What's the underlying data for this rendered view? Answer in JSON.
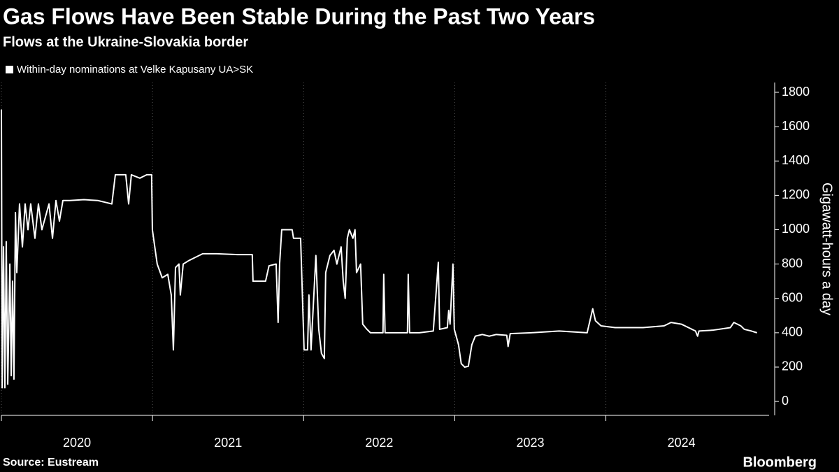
{
  "chart_data": {
    "type": "line",
    "title": "Gas Flows Have Been Stable During the Past Two Years",
    "subtitle": "Flows at the Ukraine-Slovakia border",
    "y_label": "Gigawatt-hours a day",
    "source": "Source: Eustream",
    "logo": "Bloomberg",
    "x": [
      2020.0,
      2020.005,
      2020.014,
      2020.023,
      2020.032,
      2020.042,
      2020.056,
      2020.065,
      2020.074,
      2020.083,
      2020.093,
      2020.102,
      2020.12,
      2020.139,
      2020.157,
      2020.176,
      2020.194,
      2020.222,
      2020.245,
      2020.268,
      2020.315,
      2020.338,
      2020.361,
      2020.384,
      2020.407,
      2020.453,
      2020.546,
      2020.638,
      2020.685,
      2020.731,
      2020.754,
      2020.823,
      2020.842,
      2020.86,
      2020.916,
      2020.962,
      2020.994,
      2020.999,
      2021.031,
      2021.064,
      2021.101,
      2021.124,
      2021.138,
      2021.152,
      2021.175,
      2021.184,
      2021.203,
      2021.24,
      2021.286,
      2021.332,
      2021.425,
      2021.563,
      2021.66,
      2021.665,
      2021.748,
      2021.771,
      2021.818,
      2021.831,
      2021.841,
      2021.855,
      2021.924,
      2021.933,
      2021.98,
      2022.003,
      2022.026,
      2022.035,
      2022.049,
      2022.081,
      2022.1,
      2022.118,
      2022.137,
      2022.146,
      2022.174,
      2022.201,
      2022.22,
      2022.248,
      2022.262,
      2022.275,
      2022.289,
      2022.303,
      2022.326,
      2022.34,
      2022.35,
      2022.377,
      2022.391,
      2022.419,
      2022.442,
      2022.525,
      2022.53,
      2022.539,
      2022.687,
      2022.692,
      2022.701,
      2022.766,
      2022.858,
      2022.891,
      2022.9,
      2022.951,
      2022.96,
      2022.969,
      2022.988,
      2022.997,
      2023.025,
      2023.043,
      2023.066,
      2023.09,
      2023.113,
      2023.136,
      2023.182,
      2023.228,
      2023.275,
      2023.344,
      2023.353,
      2023.367,
      2023.506,
      2023.691,
      2023.876,
      2023.913,
      2023.931,
      2023.968,
      2024.061,
      2024.246,
      2024.385,
      2024.431,
      2024.5,
      2024.593,
      2024.607,
      2024.616,
      2024.708,
      2024.824,
      2024.847,
      2024.893,
      2024.916,
      2024.963,
      2025.0
    ],
    "series": [
      {
        "name": "Within-day nominations at Velke Kapusany UA>SK",
        "color": "#ffffff",
        "values": [
          1700,
          80,
          900,
          80,
          930,
          100,
          800,
          150,
          700,
          130,
          1100,
          750,
          1150,
          900,
          1150,
          1000,
          1150,
          950,
          1150,
          1000,
          1150,
          950,
          1170,
          1050,
          1170,
          1170,
          1175,
          1170,
          1160,
          1150,
          1320,
          1320,
          1150,
          1320,
          1300,
          1320,
          1320,
          1000,
          800,
          720,
          740,
          620,
          300,
          780,
          800,
          620,
          800,
          820,
          840,
          860,
          860,
          855,
          855,
          700,
          700,
          790,
          800,
          460,
          800,
          1000,
          1000,
          950,
          950,
          300,
          300,
          620,
          300,
          850,
          420,
          280,
          250,
          750,
          850,
          880,
          800,
          900,
          700,
          600,
          950,
          1000,
          950,
          1000,
          750,
          800,
          450,
          420,
          400,
          400,
          740,
          400,
          400,
          740,
          400,
          400,
          410,
          810,
          420,
          430,
          530,
          450,
          800,
          420,
          330,
          220,
          200,
          205,
          330,
          380,
          390,
          380,
          390,
          385,
          320,
          395,
          400,
          410,
          400,
          540,
          470,
          440,
          430,
          430,
          440,
          460,
          450,
          410,
          380,
          410,
          415,
          430,
          460,
          440,
          420,
          410,
          400
        ]
      }
    ],
    "xlim": [
      2020,
      2025.08
    ],
    "xticks": [
      2020,
      2021,
      2022,
      2023,
      2024
    ],
    "ylim": [
      -81,
      1857
    ],
    "yticks": [
      0,
      200,
      400,
      600,
      800,
      1000,
      1200,
      1400,
      1600,
      1800
    ]
  }
}
